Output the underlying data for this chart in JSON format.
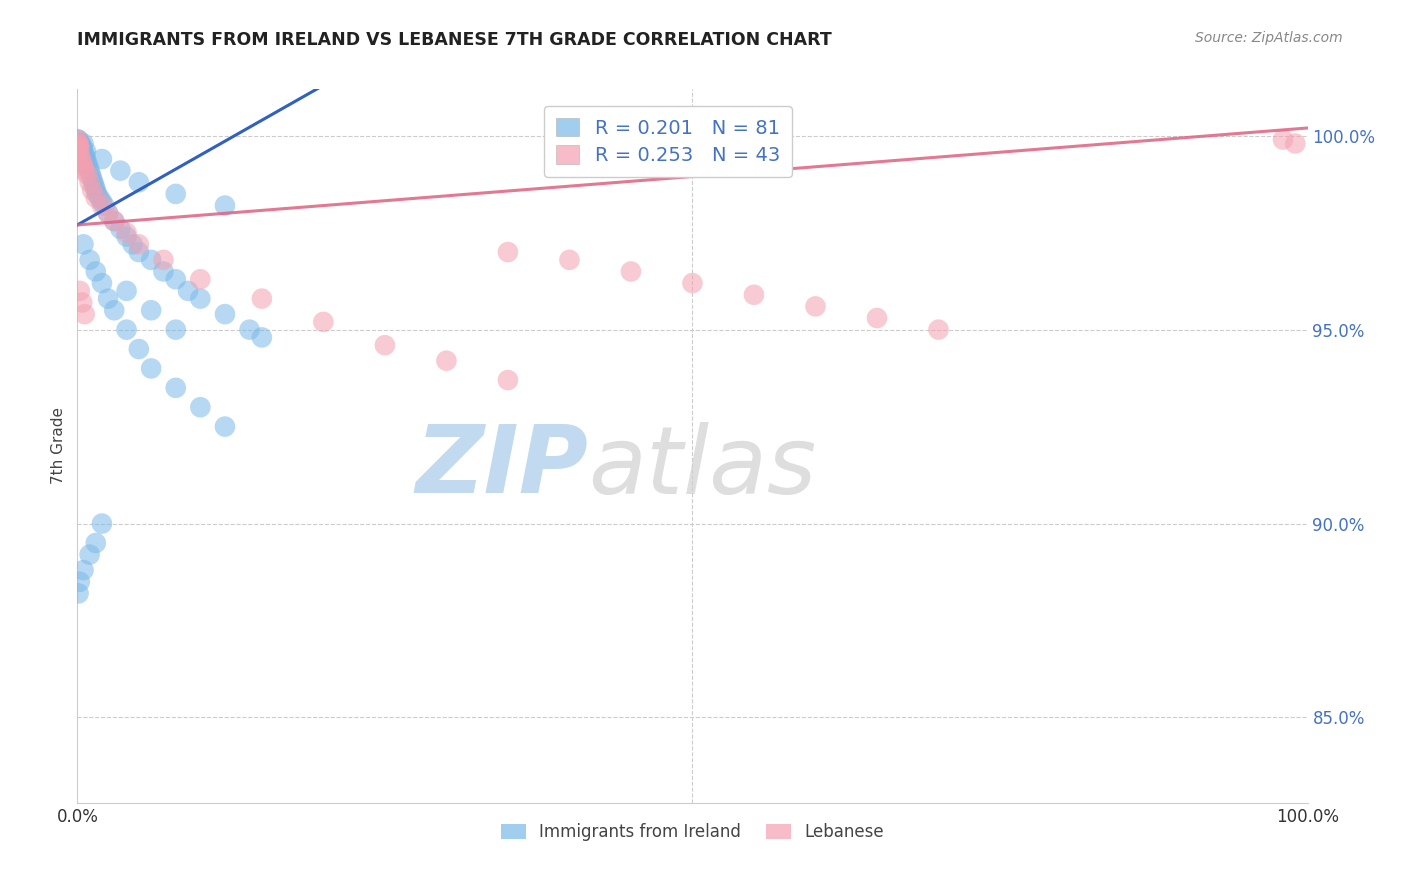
{
  "title": "IMMIGRANTS FROM IRELAND VS LEBANESE 7TH GRADE CORRELATION CHART",
  "source": "Source: ZipAtlas.com",
  "ylabel": "7th Grade",
  "legend_ireland": "Immigrants from Ireland",
  "legend_lebanese": "Lebanese",
  "R_ireland": 0.201,
  "N_ireland": 81,
  "R_lebanese": 0.253,
  "N_lebanese": 43,
  "ireland_color": "#7ab8e8",
  "lebanese_color": "#f4a0b0",
  "ireland_line_color": "#3060c0",
  "lebanese_line_color": "#e06080",
  "background_color": "#ffffff",
  "ytick_values": [
    0.85,
    0.9,
    0.95,
    1.0
  ],
  "ytick_labels": [
    "85.0%",
    "90.0%",
    "95.0%",
    "100.0%"
  ],
  "xmin": 0.0,
  "xmax": 1.0,
  "ymin": 0.828,
  "ymax": 1.012,
  "watermark_color": "#d0e8f8",
  "watermark_alpha": 0.9,
  "grid_color": "#cccccc",
  "ireland_x": [
    0.0,
    0.0,
    0.0,
    0.0,
    0.0,
    0.0,
    0.0,
    0.0,
    0.0,
    0.0,
    0.001,
    0.001,
    0.001,
    0.001,
    0.001,
    0.001,
    0.002,
    0.002,
    0.002,
    0.002,
    0.003,
    0.003,
    0.003,
    0.004,
    0.004,
    0.005,
    0.005,
    0.006,
    0.007,
    0.008,
    0.009,
    0.01,
    0.011,
    0.012,
    0.013,
    0.014,
    0.015,
    0.016,
    0.018,
    0.02,
    0.022,
    0.025,
    0.03,
    0.035,
    0.04,
    0.045,
    0.05,
    0.06,
    0.07,
    0.08,
    0.09,
    0.1,
    0.12,
    0.14,
    0.15,
    0.005,
    0.01,
    0.015,
    0.02,
    0.025,
    0.03,
    0.04,
    0.05,
    0.06,
    0.08,
    0.1,
    0.12,
    0.04,
    0.06,
    0.08,
    0.02,
    0.015,
    0.01,
    0.005,
    0.002,
    0.001,
    0.003,
    0.007,
    0.02,
    0.035,
    0.05,
    0.08,
    0.12
  ],
  "ireland_y": [
    0.999,
    0.998,
    0.997,
    0.997,
    0.996,
    0.996,
    0.995,
    0.995,
    0.994,
    0.993,
    0.999,
    0.998,
    0.997,
    0.996,
    0.995,
    0.994,
    0.998,
    0.997,
    0.996,
    0.995,
    0.997,
    0.996,
    0.995,
    0.997,
    0.995,
    0.998,
    0.996,
    0.995,
    0.994,
    0.993,
    0.992,
    0.991,
    0.99,
    0.989,
    0.988,
    0.987,
    0.986,
    0.985,
    0.984,
    0.983,
    0.982,
    0.98,
    0.978,
    0.976,
    0.974,
    0.972,
    0.97,
    0.968,
    0.965,
    0.963,
    0.96,
    0.958,
    0.954,
    0.95,
    0.948,
    0.972,
    0.968,
    0.965,
    0.962,
    0.958,
    0.955,
    0.95,
    0.945,
    0.94,
    0.935,
    0.93,
    0.925,
    0.96,
    0.955,
    0.95,
    0.9,
    0.895,
    0.892,
    0.888,
    0.885,
    0.882,
    0.998,
    0.996,
    0.994,
    0.991,
    0.988,
    0.985,
    0.982
  ],
  "lebanese_x": [
    0.0,
    0.0,
    0.0,
    0.0,
    0.0,
    0.001,
    0.001,
    0.001,
    0.002,
    0.002,
    0.003,
    0.004,
    0.005,
    0.006,
    0.008,
    0.01,
    0.012,
    0.015,
    0.02,
    0.025,
    0.03,
    0.04,
    0.05,
    0.07,
    0.1,
    0.15,
    0.2,
    0.25,
    0.3,
    0.35,
    0.002,
    0.004,
    0.006,
    0.35,
    0.4,
    0.45,
    0.5,
    0.55,
    0.6,
    0.65,
    0.7,
    0.98,
    0.99
  ],
  "lebanese_y": [
    0.999,
    0.998,
    0.997,
    0.996,
    0.995,
    0.998,
    0.997,
    0.996,
    0.997,
    0.995,
    0.994,
    0.993,
    0.992,
    0.991,
    0.99,
    0.988,
    0.986,
    0.984,
    0.982,
    0.98,
    0.978,
    0.975,
    0.972,
    0.968,
    0.963,
    0.958,
    0.952,
    0.946,
    0.942,
    0.937,
    0.96,
    0.957,
    0.954,
    0.97,
    0.968,
    0.965,
    0.962,
    0.959,
    0.956,
    0.953,
    0.95,
    0.999,
    0.998
  ]
}
